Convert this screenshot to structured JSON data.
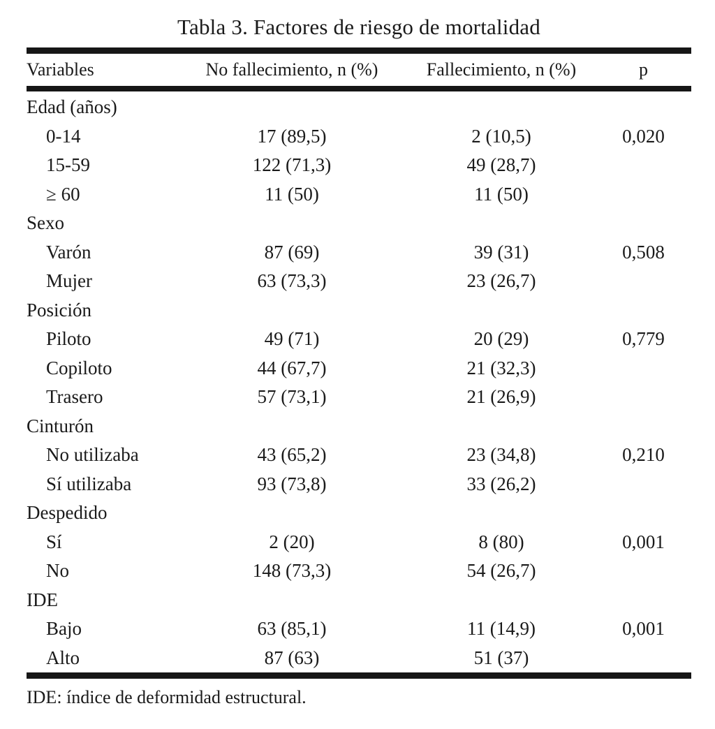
{
  "title": "Tabla 3. Factores de riesgo de mortalidad",
  "columns": {
    "variables": "Variables",
    "no_fallecimiento": "No fallecimiento, n (%)",
    "fallecimiento": "Fallecimiento, n (%)",
    "p": "p"
  },
  "rows": [
    {
      "type": "section",
      "label": "Edad (años)",
      "no_fallecimiento": "",
      "fallecimiento": "",
      "p": ""
    },
    {
      "type": "item",
      "label": "0-14",
      "no_fallecimiento": "17 (89,5)",
      "fallecimiento": "2 (10,5)",
      "p": "0,020"
    },
    {
      "type": "item",
      "label": "15-59",
      "no_fallecimiento": "122 (71,3)",
      "fallecimiento": "49 (28,7)",
      "p": ""
    },
    {
      "type": "item",
      "label": "≥ 60",
      "no_fallecimiento": "11 (50)",
      "fallecimiento": "11 (50)",
      "p": ""
    },
    {
      "type": "section",
      "label": "Sexo",
      "no_fallecimiento": "",
      "fallecimiento": "",
      "p": ""
    },
    {
      "type": "item",
      "label": "Varón",
      "no_fallecimiento": "87 (69)",
      "fallecimiento": "39 (31)",
      "p": "0,508"
    },
    {
      "type": "item",
      "label": "Mujer",
      "no_fallecimiento": "63 (73,3)",
      "fallecimiento": "23 (26,7)",
      "p": ""
    },
    {
      "type": "section",
      "label": "Posición",
      "no_fallecimiento": "",
      "fallecimiento": "",
      "p": ""
    },
    {
      "type": "item",
      "label": "Piloto",
      "no_fallecimiento": "49 (71)",
      "fallecimiento": "20 (29)",
      "p": "0,779"
    },
    {
      "type": "item",
      "label": "Copiloto",
      "no_fallecimiento": "44 (67,7)",
      "fallecimiento": "21 (32,3)",
      "p": ""
    },
    {
      "type": "item",
      "label": "Trasero",
      "no_fallecimiento": "57 (73,1)",
      "fallecimiento": "21 (26,9)",
      "p": ""
    },
    {
      "type": "section",
      "label": "Cinturón",
      "no_fallecimiento": "",
      "fallecimiento": "",
      "p": ""
    },
    {
      "type": "item",
      "label": "No utilizaba",
      "no_fallecimiento": "43 (65,2)",
      "fallecimiento": "23 (34,8)",
      "p": "0,210"
    },
    {
      "type": "item",
      "label": "Sí utilizaba",
      "no_fallecimiento": "93 (73,8)",
      "fallecimiento": "33 (26,2)",
      "p": ""
    },
    {
      "type": "section",
      "label": "Despedido",
      "no_fallecimiento": "",
      "fallecimiento": "",
      "p": ""
    },
    {
      "type": "item",
      "label": "Sí",
      "no_fallecimiento": "2 (20)",
      "fallecimiento": "8 (80)",
      "p": "0,001"
    },
    {
      "type": "item",
      "label": "No",
      "no_fallecimiento": "148 (73,3)",
      "fallecimiento": "54 (26,7)",
      "p": ""
    },
    {
      "type": "section",
      "label": "IDE",
      "no_fallecimiento": "",
      "fallecimiento": "",
      "p": ""
    },
    {
      "type": "item",
      "label": "Bajo",
      "no_fallecimiento": "63 (85,1)",
      "fallecimiento": "11 (14,9)",
      "p": "0,001"
    },
    {
      "type": "item",
      "label": "Alto",
      "no_fallecimiento": "87 (63)",
      "fallecimiento": "51 (37)",
      "p": ""
    }
  ],
  "footnote": "IDE: índice de deformidad estructural.",
  "colors": {
    "text": "#1a1a1a",
    "rule": "#161616",
    "background": "#ffffff"
  }
}
